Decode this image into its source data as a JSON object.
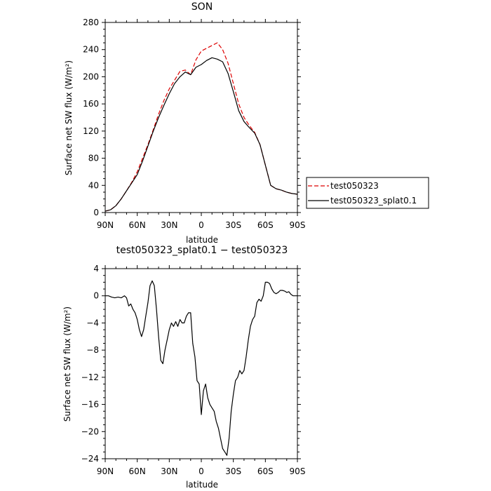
{
  "chart_data": [
    {
      "type": "line",
      "title": "SON",
      "xlabel": "latitude",
      "ylabel": "Surface net SW flux (W/m²)",
      "xlim": [
        90,
        -90
      ],
      "ylim": [
        0,
        280
      ],
      "x_ticks": [
        {
          "value": 90,
          "label": "90N"
        },
        {
          "value": 60,
          "label": "60N"
        },
        {
          "value": 30,
          "label": "30N"
        },
        {
          "value": 0,
          "label": "0"
        },
        {
          "value": -30,
          "label": "30S"
        },
        {
          "value": -60,
          "label": "60S"
        },
        {
          "value": -90,
          "label": "90S"
        }
      ],
      "y_ticks": [
        0,
        40,
        80,
        120,
        160,
        200,
        240,
        280
      ],
      "grid": false,
      "legend": "right",
      "series": [
        {
          "name": "test050323",
          "color": "#dd0000",
          "dash": "dashed",
          "x": [
            90,
            85,
            80,
            75,
            70,
            65,
            60,
            55,
            50,
            45,
            40,
            35,
            30,
            25,
            20,
            15,
            10,
            5,
            0,
            -5,
            -10,
            -15,
            -20,
            -25,
            -30,
            -35,
            -40,
            -45,
            -50,
            -55,
            -60,
            -65,
            -70,
            -75,
            -80,
            -85,
            -90
          ],
          "y": [
            2,
            4,
            10,
            20,
            32,
            45,
            60,
            80,
            100,
            122,
            145,
            165,
            182,
            195,
            208,
            210,
            203,
            225,
            238,
            242,
            246,
            250,
            240,
            220,
            190,
            160,
            140,
            128,
            118,
            100,
            70,
            40,
            35,
            33,
            30,
            28,
            27
          ]
        },
        {
          "name": "test050323_splat0.1",
          "color": "#000000",
          "dash": "solid",
          "x": [
            90,
            85,
            80,
            75,
            70,
            65,
            60,
            55,
            50,
            45,
            40,
            35,
            30,
            25,
            20,
            15,
            10,
            5,
            0,
            -5,
            -10,
            -15,
            -20,
            -25,
            -30,
            -35,
            -40,
            -45,
            -50,
            -55,
            -60,
            -65,
            -70,
            -75,
            -80,
            -85,
            -90
          ],
          "y": [
            2,
            4,
            10,
            20,
            32,
            44,
            56,
            76,
            98,
            120,
            140,
            158,
            175,
            190,
            200,
            207,
            203,
            214,
            218,
            224,
            228,
            226,
            222,
            205,
            178,
            150,
            134,
            125,
            117,
            100,
            70,
            40,
            35,
            33,
            30,
            28,
            27
          ]
        }
      ]
    },
    {
      "type": "line",
      "title": "test050323_splat0.1 − test050323",
      "xlabel": "latitude",
      "ylabel": "Surface net SW flux (W/m²)",
      "xlim": [
        90,
        -90
      ],
      "ylim": [
        -24,
        4
      ],
      "x_ticks": [
        {
          "value": 90,
          "label": "90N"
        },
        {
          "value": 60,
          "label": "60N"
        },
        {
          "value": 30,
          "label": "30N"
        },
        {
          "value": 0,
          "label": "0"
        },
        {
          "value": -30,
          "label": "30S"
        },
        {
          "value": -60,
          "label": "60S"
        },
        {
          "value": -90,
          "label": "90S"
        }
      ],
      "y_ticks": [
        4,
        0,
        -4,
        -8,
        -12,
        -16,
        -20,
        -24
      ],
      "grid": false,
      "series": [
        {
          "color": "#000000",
          "dash": "solid",
          "x": [
            90,
            87,
            84,
            81,
            78,
            75,
            72,
            70,
            68,
            66,
            64,
            62,
            60,
            58,
            56,
            54,
            52,
            50,
            48,
            46,
            44,
            42,
            40,
            38,
            36,
            34,
            32,
            30,
            28,
            26,
            24,
            22,
            20,
            18,
            16,
            14,
            12,
            10,
            8,
            6,
            4,
            2,
            0,
            -2,
            -4,
            -6,
            -8,
            -10,
            -12,
            -14,
            -16,
            -18,
            -20,
            -22,
            -24,
            -26,
            -28,
            -30,
            -32,
            -34,
            -36,
            -38,
            -40,
            -42,
            -44,
            -46,
            -48,
            -50,
            -52,
            -54,
            -56,
            -58,
            -60,
            -62,
            -64,
            -66,
            -68,
            -70,
            -72,
            -74,
            -76,
            -78,
            -80,
            -82,
            -84,
            -86,
            -88,
            -90
          ],
          "y": [
            0,
            0,
            -0.2,
            -0.3,
            -0.2,
            -0.3,
            0,
            -0.3,
            -1.5,
            -1.2,
            -2,
            -2.5,
            -3.5,
            -5,
            -6,
            -5,
            -3,
            -1,
            1.5,
            2.2,
            1.5,
            -2,
            -6,
            -9.5,
            -10,
            -8,
            -6.5,
            -5,
            -4,
            -4.5,
            -3.8,
            -4.5,
            -3.5,
            -4,
            -4,
            -3,
            -2.5,
            -2.5,
            -7,
            -9,
            -12.5,
            -13,
            -17.5,
            -14,
            -13,
            -15,
            -16,
            -16.5,
            -17,
            -18.5,
            -19.5,
            -21,
            -22.5,
            -23,
            -23.5,
            -21,
            -17,
            -14.5,
            -12.5,
            -12,
            -11,
            -11.5,
            -11,
            -9,
            -6.5,
            -4.5,
            -3.5,
            -3,
            -1,
            -0.5,
            -0.8,
            0,
            2,
            2,
            1.8,
            1,
            0.5,
            0.3,
            0.5,
            0.8,
            0.8,
            0.7,
            0.5,
            0.6,
            0.2,
            0,
            0,
            0
          ]
        }
      ]
    }
  ]
}
